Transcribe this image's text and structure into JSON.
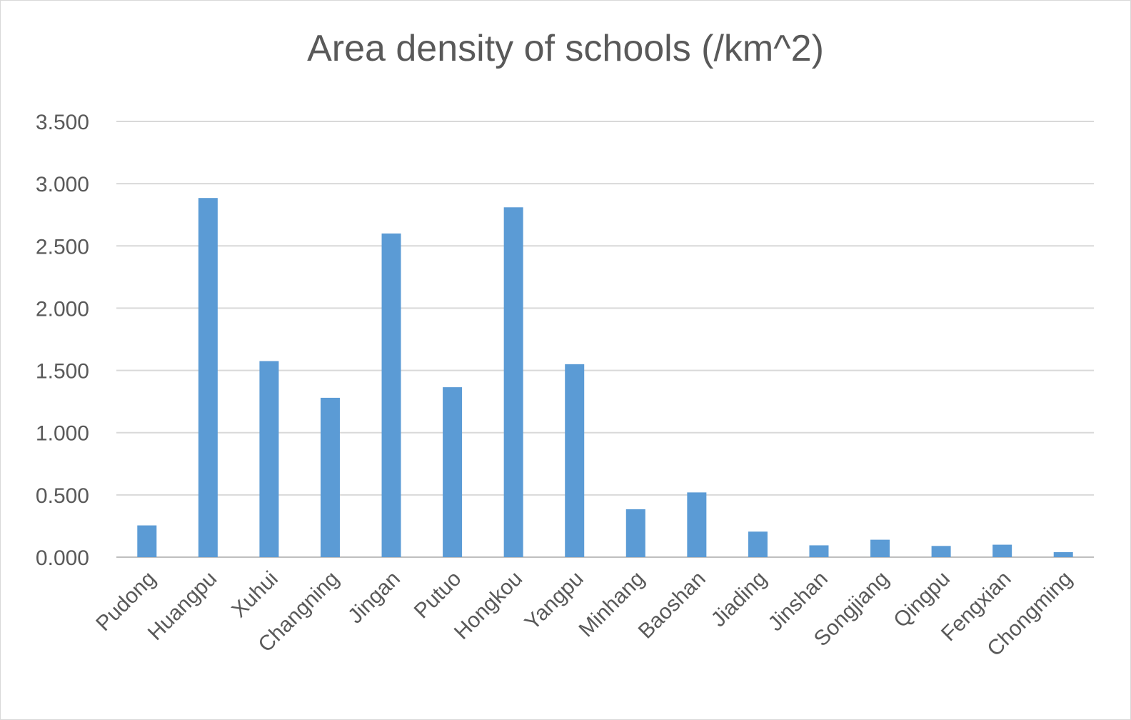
{
  "chart_data": {
    "type": "bar",
    "title": "Area density of schools (/km^2)",
    "xlabel": "",
    "ylabel": "",
    "categories": [
      "Pudong",
      "Huangpu",
      "Xuhui",
      "Changning",
      "Jingan",
      "Putuo",
      "Hongkou",
      "Yangpu",
      "Minhang",
      "Baoshan",
      "Jiading",
      "Jinshan",
      "Songjiang",
      "Qingpu",
      "Fengxian",
      "Chongming"
    ],
    "values": [
      0.255,
      2.885,
      1.575,
      1.28,
      2.6,
      1.365,
      2.81,
      1.55,
      0.385,
      0.52,
      0.205,
      0.095,
      0.14,
      0.09,
      0.1,
      0.04
    ],
    "ylim": [
      0,
      3.5
    ],
    "yticks": [
      "0.000",
      "0.500",
      "1.000",
      "1.500",
      "2.000",
      "2.500",
      "3.000",
      "3.500"
    ],
    "bar_color": "#5b9bd5",
    "grid": true,
    "legend": "none"
  }
}
